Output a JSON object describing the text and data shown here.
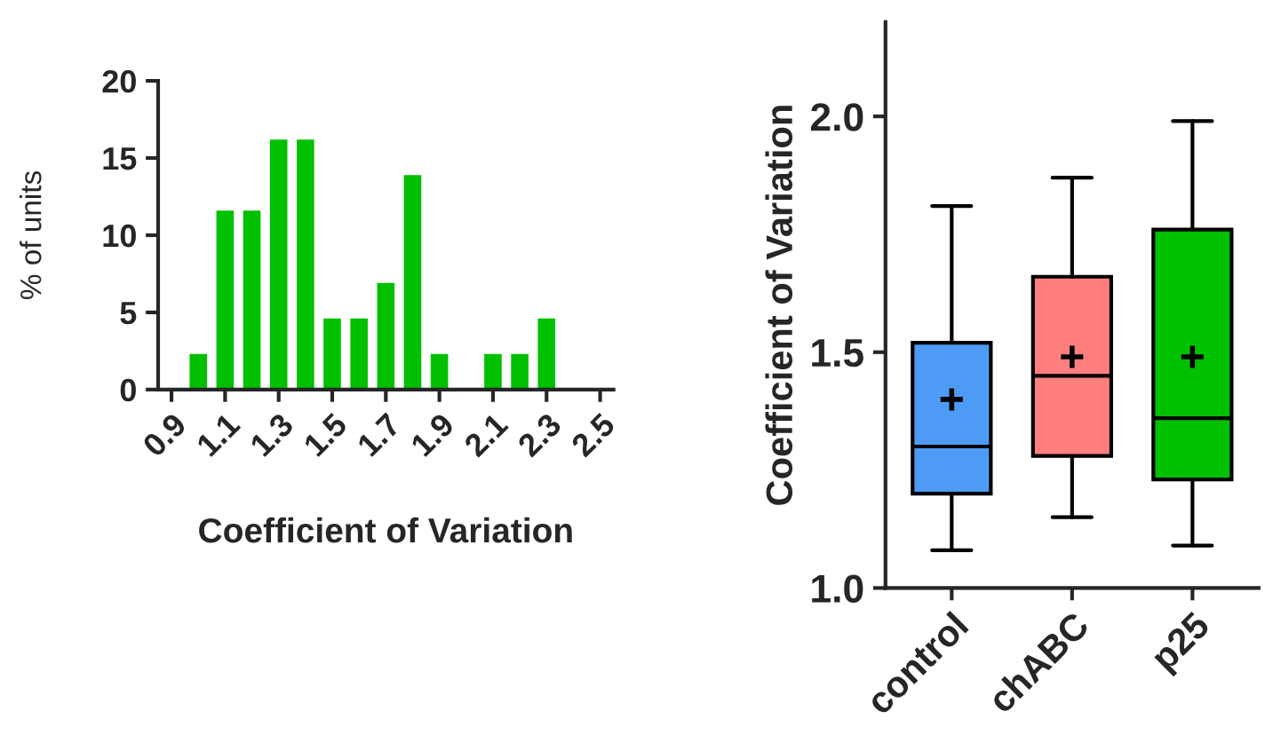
{
  "chart_data": [
    {
      "type": "histogram",
      "ylabel": "% of units",
      "xlabel": "Coefficient of Variation",
      "color": "#00c000",
      "bins": [
        0.95,
        1.05,
        1.15,
        1.25,
        1.35,
        1.45,
        1.55,
        1.65,
        1.75,
        1.85,
        1.95,
        2.05,
        2.15,
        2.25,
        2.35,
        2.45
      ],
      "values": [
        2.3,
        11.6,
        11.6,
        16.2,
        16.2,
        4.6,
        4.6,
        6.9,
        13.9,
        2.3,
        0,
        2.3,
        2.3,
        4.6,
        0
      ],
      "xlim": [
        0.85,
        2.55
      ],
      "xticks": [
        0.9,
        1.1,
        1.3,
        1.5,
        1.7,
        1.9,
        2.1,
        2.3,
        2.5
      ],
      "ylim": [
        0,
        20
      ],
      "yticks": [
        0,
        5,
        10,
        15,
        20
      ],
      "grid": false,
      "legend": false
    },
    {
      "type": "box",
      "ylabel": "Coefficient of Variation",
      "categories": [
        "control",
        "chABC",
        "p25"
      ],
      "colors": [
        "#4d9bf5",
        "#ff7f7f",
        "#00c000"
      ],
      "boxes": [
        {
          "low": 1.08,
          "q1": 1.2,
          "median": 1.3,
          "q3": 1.52,
          "high": 1.81,
          "mean": 1.4
        },
        {
          "low": 1.15,
          "q1": 1.28,
          "median": 1.45,
          "q3": 1.66,
          "high": 1.87,
          "mean": 1.49
        },
        {
          "low": 1.09,
          "q1": 1.23,
          "median": 1.36,
          "q3": 1.76,
          "high": 1.99,
          "mean": 1.49
        }
      ],
      "ylim": [
        1.0,
        2.2
      ],
      "yticks": [
        {
          "value": 1.0,
          "label": "1.0"
        },
        {
          "value": 1.5,
          "label": "1.5"
        },
        {
          "value": 2.0,
          "label": "2.0"
        }
      ],
      "grid": false,
      "legend": false
    }
  ]
}
